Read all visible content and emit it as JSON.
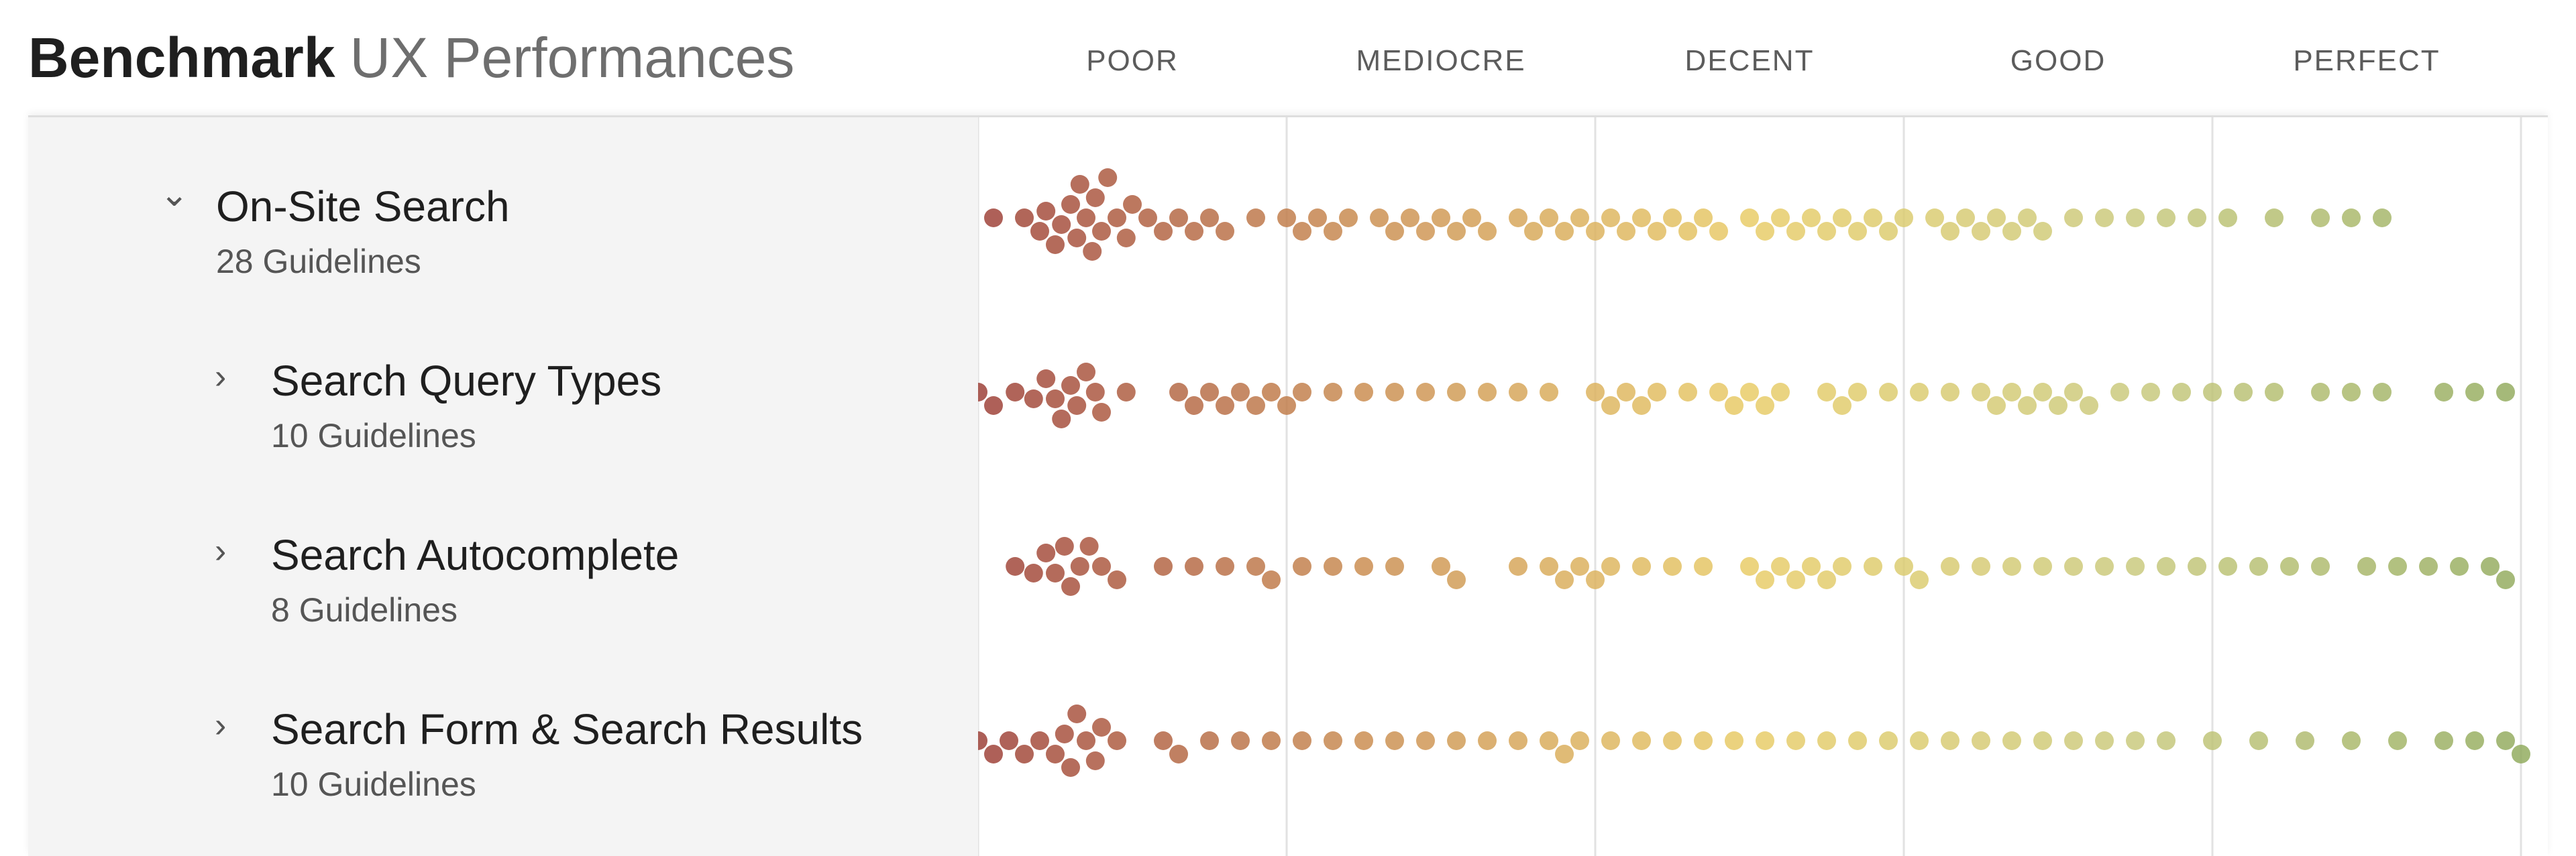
{
  "header": {
    "title_strong": "Benchmark",
    "title_light": "UX Performances"
  },
  "bands": [
    "POOR",
    "MEDIOCRE",
    "DECENT",
    "GOOD",
    "PERFECT"
  ],
  "rows": [
    {
      "title": "On-Site Search",
      "subtitle": "28 Guidelines",
      "level": 0,
      "expanded": true
    },
    {
      "title": "Search Query Types",
      "subtitle": "10 Guidelines",
      "level": 1,
      "expanded": false
    },
    {
      "title": "Search Autocomplete",
      "subtitle": "8 Guidelines",
      "level": 1,
      "expanded": false
    },
    {
      "title": "Search Form & Search Results",
      "subtitle": "10 Guidelines",
      "level": 1,
      "expanded": false
    }
  ],
  "chart_data": {
    "type": "scatter",
    "subtype": "beeswarm",
    "title": "",
    "categories": [
      "POOR",
      "MEDIOCRE",
      "DECENT",
      "GOOD",
      "PERFECT"
    ],
    "xlim": [
      0,
      5
    ],
    "grid": true,
    "colors": [
      "#9a3a32",
      "#c98a4c",
      "#e8cb63",
      "#c8c87a",
      "#8fa95a"
    ],
    "series": [
      {
        "name": "On-Site Search",
        "x": [
          0.05,
          0.15,
          0.2,
          0.22,
          0.25,
          0.27,
          0.3,
          0.32,
          0.33,
          0.35,
          0.37,
          0.38,
          0.4,
          0.42,
          0.45,
          0.48,
          0.5,
          0.55,
          0.6,
          0.65,
          0.7,
          0.75,
          0.8,
          0.9,
          1.0,
          1.05,
          1.1,
          1.15,
          1.2,
          1.3,
          1.35,
          1.4,
          1.45,
          1.5,
          1.55,
          1.6,
          1.65,
          1.75,
          1.8,
          1.85,
          1.9,
          1.95,
          2.0,
          2.05,
          2.1,
          2.15,
          2.2,
          2.25,
          2.3,
          2.35,
          2.4,
          2.5,
          2.55,
          2.6,
          2.65,
          2.7,
          2.75,
          2.8,
          2.85,
          2.9,
          2.95,
          3.0,
          3.1,
          3.15,
          3.2,
          3.25,
          3.3,
          3.35,
          3.4,
          3.45,
          3.55,
          3.65,
          3.75,
          3.85,
          3.95,
          4.05,
          4.2,
          4.35,
          4.45,
          4.55
        ]
      },
      {
        "name": "Search Query Types",
        "x": [
          0.0,
          0.05,
          0.12,
          0.18,
          0.22,
          0.25,
          0.27,
          0.3,
          0.32,
          0.35,
          0.38,
          0.4,
          0.48,
          0.65,
          0.7,
          0.75,
          0.8,
          0.85,
          0.9,
          0.95,
          1.0,
          1.05,
          1.15,
          1.25,
          1.35,
          1.45,
          1.55,
          1.65,
          1.75,
          1.85,
          2.0,
          2.05,
          2.1,
          2.15,
          2.2,
          2.3,
          2.4,
          2.45,
          2.5,
          2.55,
          2.6,
          2.75,
          2.8,
          2.85,
          2.95,
          3.05,
          3.15,
          3.25,
          3.3,
          3.35,
          3.4,
          3.45,
          3.5,
          3.55,
          3.6,
          3.7,
          3.8,
          3.9,
          4.0,
          4.1,
          4.2,
          4.35,
          4.45,
          4.55,
          4.75,
          4.85,
          4.95
        ]
      },
      {
        "name": "Search Autocomplete",
        "x": [
          0.12,
          0.18,
          0.22,
          0.25,
          0.28,
          0.3,
          0.33,
          0.36,
          0.4,
          0.45,
          0.6,
          0.7,
          0.8,
          0.9,
          0.95,
          1.05,
          1.15,
          1.25,
          1.35,
          1.5,
          1.55,
          1.75,
          1.85,
          1.9,
          1.95,
          2.0,
          2.05,
          2.15,
          2.25,
          2.35,
          2.5,
          2.55,
          2.6,
          2.65,
          2.7,
          2.75,
          2.8,
          2.9,
          3.0,
          3.05,
          3.15,
          3.25,
          3.35,
          3.45,
          3.55,
          3.65,
          3.75,
          3.85,
          3.95,
          4.05,
          4.15,
          4.25,
          4.35,
          4.5,
          4.6,
          4.7,
          4.8,
          4.9,
          4.95
        ]
      },
      {
        "name": "Search Form & Search Results",
        "x": [
          0.0,
          0.05,
          0.1,
          0.15,
          0.2,
          0.25,
          0.28,
          0.3,
          0.32,
          0.35,
          0.38,
          0.4,
          0.45,
          0.6,
          0.65,
          0.75,
          0.85,
          0.95,
          1.05,
          1.15,
          1.25,
          1.35,
          1.45,
          1.55,
          1.65,
          1.75,
          1.85,
          1.9,
          1.95,
          2.05,
          2.15,
          2.25,
          2.35,
          2.45,
          2.55,
          2.65,
          2.75,
          2.85,
          2.95,
          3.05,
          3.15,
          3.25,
          3.35,
          3.45,
          3.55,
          3.65,
          3.75,
          3.85,
          4.0,
          4.15,
          4.3,
          4.45,
          4.6,
          4.75,
          4.85,
          4.95,
          5.0
        ]
      }
    ]
  }
}
